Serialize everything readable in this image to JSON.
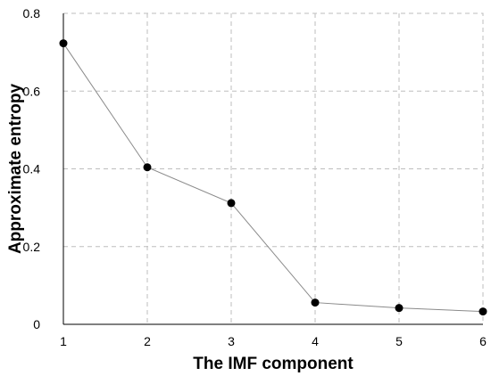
{
  "chart_data": {
    "type": "line",
    "title": "",
    "xlabel": "The IMF component",
    "ylabel": "Approximate entropy",
    "x": [
      1,
      2,
      3,
      4,
      5,
      6
    ],
    "series": [
      {
        "values": [
          0.723,
          0.404,
          0.312,
          0.056,
          0.042,
          0.033
        ]
      }
    ],
    "xlim": [
      1,
      6
    ],
    "ylim": [
      0,
      0.8
    ],
    "x_ticks": [
      "1",
      "2",
      "3",
      "4",
      "5",
      "6"
    ],
    "y_ticks": [
      "0",
      "0.2",
      "0.4",
      "0.6",
      "0.8"
    ],
    "grid": true,
    "marker": "filled-circle",
    "colors": {
      "line": "#8a8a8a",
      "marker": "#000000",
      "grid": "#bdbdbd"
    }
  }
}
